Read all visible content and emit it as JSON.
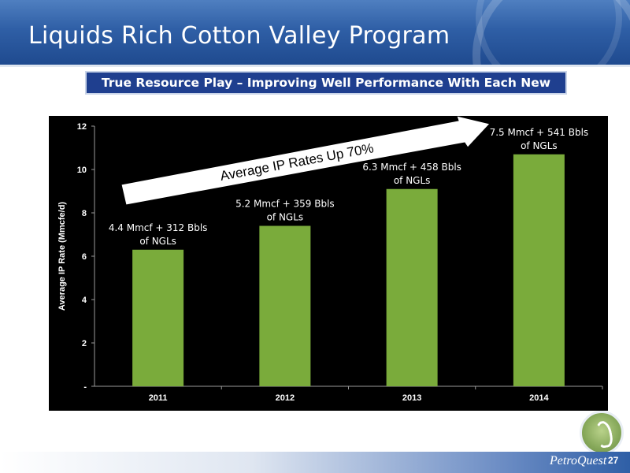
{
  "slide": {
    "title": "Liquids Rich Cotton Valley Program",
    "banner": "True Resource Play – Improving Well Performance With Each New Well",
    "brand": "PetroQuest",
    "page_number": "27"
  },
  "chart_data": {
    "type": "bar",
    "categories": [
      "2011",
      "2012",
      "2013",
      "2014"
    ],
    "values": [
      6.3,
      7.4,
      9.1,
      10.7
    ],
    "ylabel": "Average IP Rate (Mmcfe/d)",
    "xlabel": "",
    "ylim": [
      0,
      12
    ],
    "yticks": [
      "-",
      "2",
      "4",
      "6",
      "8",
      "10",
      "12"
    ],
    "bar_labels": [
      [
        "4.4 Mmcf + 312 Bbls",
        "of NGLs"
      ],
      [
        "5.2 Mmcf + 359 Bbls",
        "of NGLs"
      ],
      [
        "6.3 Mmcf + 458 Bbls",
        "of NGLs"
      ],
      [
        "7.5 Mmcf + 541 Bbls",
        "of NGLs"
      ]
    ],
    "annotation": "Average IP Rates Up 70%",
    "bar_color": "#7aab3b",
    "background": "#000000"
  }
}
